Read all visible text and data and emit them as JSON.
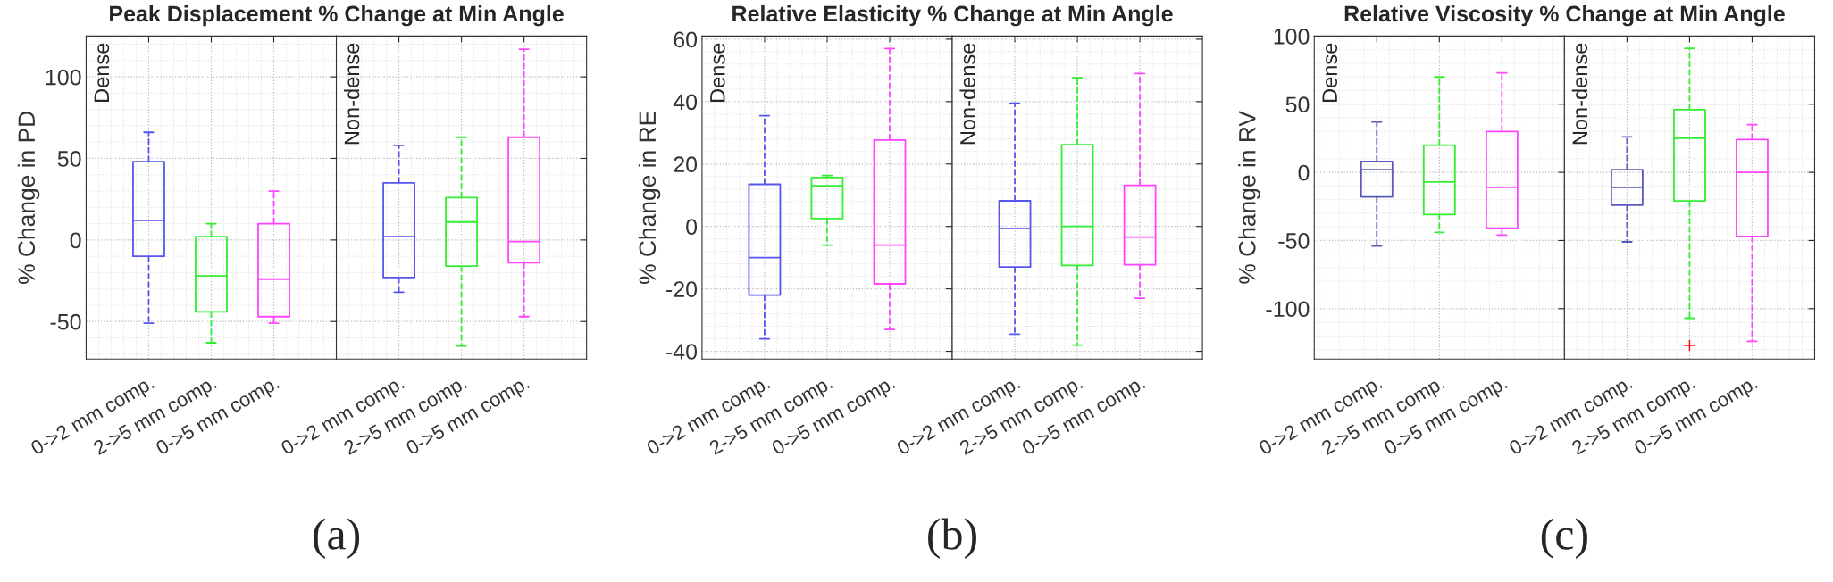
{
  "chart_data": [
    {
      "type": "box",
      "title": "Peak Displacement % Change at Min Angle",
      "ylabel": "% Change in PD",
      "categories": [
        "0->2 mm comp.",
        "2->5 mm comp.",
        "0->5 mm comp."
      ],
      "ylim": [
        -73,
        125
      ],
      "yticks": [
        -50,
        0,
        50,
        100
      ],
      "colors": [
        "#5555ee",
        "#33ee33",
        "#ff44ff"
      ],
      "boxes": [
        {
          "low": -51,
          "q1": -10,
          "median": 12,
          "q3": 48,
          "high": 66
        },
        {
          "low": -63,
          "q1": -44,
          "median": -22,
          "q3": 2,
          "high": 10
        },
        {
          "low": -51,
          "q1": -47,
          "median": -24,
          "q3": 10,
          "high": 30
        }
      ],
      "annotations": [
        "Dense",
        "(a)"
      ],
      "grid": true,
      "line_style": "dashed"
    },
    {
      "type": "box",
      "categories": [
        "0->2 mm comp.",
        "2->5 mm comp.",
        "0->5 mm comp."
      ],
      "ylim": [
        -73,
        125
      ],
      "yticks": [
        -50,
        0,
        50,
        100
      ],
      "tick_labels": "x",
      "colors": [
        "#5555ee",
        "#33ee33",
        "#ff44ff"
      ],
      "boxes": [
        {
          "low": -32,
          "q1": -23,
          "median": 2,
          "q3": 35,
          "high": 58
        },
        {
          "low": -65,
          "q1": -16,
          "median": 11,
          "q3": 26,
          "high": 63
        },
        {
          "low": -47,
          "q1": -14,
          "median": -1,
          "q3": 63,
          "high": 117
        }
      ],
      "annotations": [
        "Non-dense"
      ],
      "grid": true,
      "line_style": "dashed"
    },
    {
      "type": "box",
      "title": "Relative Elasticity % Change at Min Angle",
      "ylabel": "% Change in RE",
      "categories": [
        "0->2 mm comp.",
        "2->5 mm comp.",
        "0->5 mm comp."
      ],
      "ylim": [
        -42.5,
        61
      ],
      "yticks": [
        -40,
        -20,
        0,
        20,
        40,
        60
      ],
      "colors": [
        "#5555ee",
        "#33ee33",
        "#ff44ff"
      ],
      "boxes": [
        {
          "low": -36,
          "q1": -22,
          "median": -10,
          "q3": 13.5,
          "high": 35.5
        },
        {
          "low": -6,
          "q1": 2.5,
          "median": 13,
          "q3": 15.7,
          "high": 16.3
        },
        {
          "low": -33,
          "q1": -18.4,
          "median": -6,
          "q3": 27.7,
          "high": 57
        }
      ],
      "annotations": [
        "Dense",
        "(b)"
      ],
      "grid": true,
      "line_style": "dashed"
    },
    {
      "type": "box",
      "categories": [
        "0->2 mm comp.",
        "2->5 mm comp.",
        "0->5 mm comp."
      ],
      "ylim": [
        -42.5,
        61
      ],
      "yticks": [
        -40,
        -20,
        0,
        20,
        40,
        60
      ],
      "tick_labels": "x",
      "colors": [
        "#5555ee",
        "#33ee33",
        "#ff44ff"
      ],
      "boxes": [
        {
          "low": -34.5,
          "q1": -13,
          "median": -0.7,
          "q3": 8.2,
          "high": 39.5
        },
        {
          "low": -38,
          "q1": -12.5,
          "median": 0,
          "q3": 26.2,
          "high": 47.6
        },
        {
          "low": -23,
          "q1": -12.3,
          "median": -3.4,
          "q3": 13.2,
          "high": 49
        }
      ],
      "annotations": [
        "Non-dense"
      ],
      "grid": true,
      "line_style": "dashed"
    },
    {
      "type": "box",
      "title": "Relative Viscosity % Change at Min Angle",
      "ylabel": "% Change in RV",
      "categories": [
        "0->2 mm comp.",
        "2->5 mm comp.",
        "0->5 mm comp."
      ],
      "ylim": [
        -137,
        100
      ],
      "yticks": [
        -100,
        -50,
        0,
        50,
        100
      ],
      "colors": [
        "#5a5ab8",
        "#33ee33",
        "#ff44ff"
      ],
      "boxes": [
        {
          "low": -54,
          "q1": -18,
          "median": 2,
          "q3": 8,
          "high": 37
        },
        {
          "low": -44,
          "q1": -31,
          "median": -7,
          "q3": 20,
          "high": 70
        },
        {
          "low": -46,
          "q1": -41,
          "median": -11,
          "q3": 30,
          "high": 73
        }
      ],
      "annotations": [
        "Dense",
        "(c)"
      ],
      "grid": true,
      "line_style": "dashed"
    },
    {
      "type": "box",
      "categories": [
        "0->2 mm comp.",
        "2->5 mm comp.",
        "0->5 mm comp."
      ],
      "ylim": [
        -137,
        100
      ],
      "yticks": [
        -100,
        -50,
        0,
        50,
        100
      ],
      "tick_labels": "x",
      "colors": [
        "#5a5ab8",
        "#33ee33",
        "#ff44ff"
      ],
      "boxes": [
        {
          "low": -51,
          "q1": -24,
          "median": -11,
          "q3": 2,
          "high": 26
        },
        {
          "low": -107,
          "q1": -21,
          "median": 25,
          "q3": 46,
          "high": 91,
          "outliers": [
            -127
          ]
        },
        {
          "low": -124,
          "q1": -47,
          "median": 0,
          "q3": 24,
          "high": 35
        }
      ],
      "annotations": [
        "Non-dense"
      ],
      "grid": true,
      "line_style": "dashed"
    }
  ]
}
